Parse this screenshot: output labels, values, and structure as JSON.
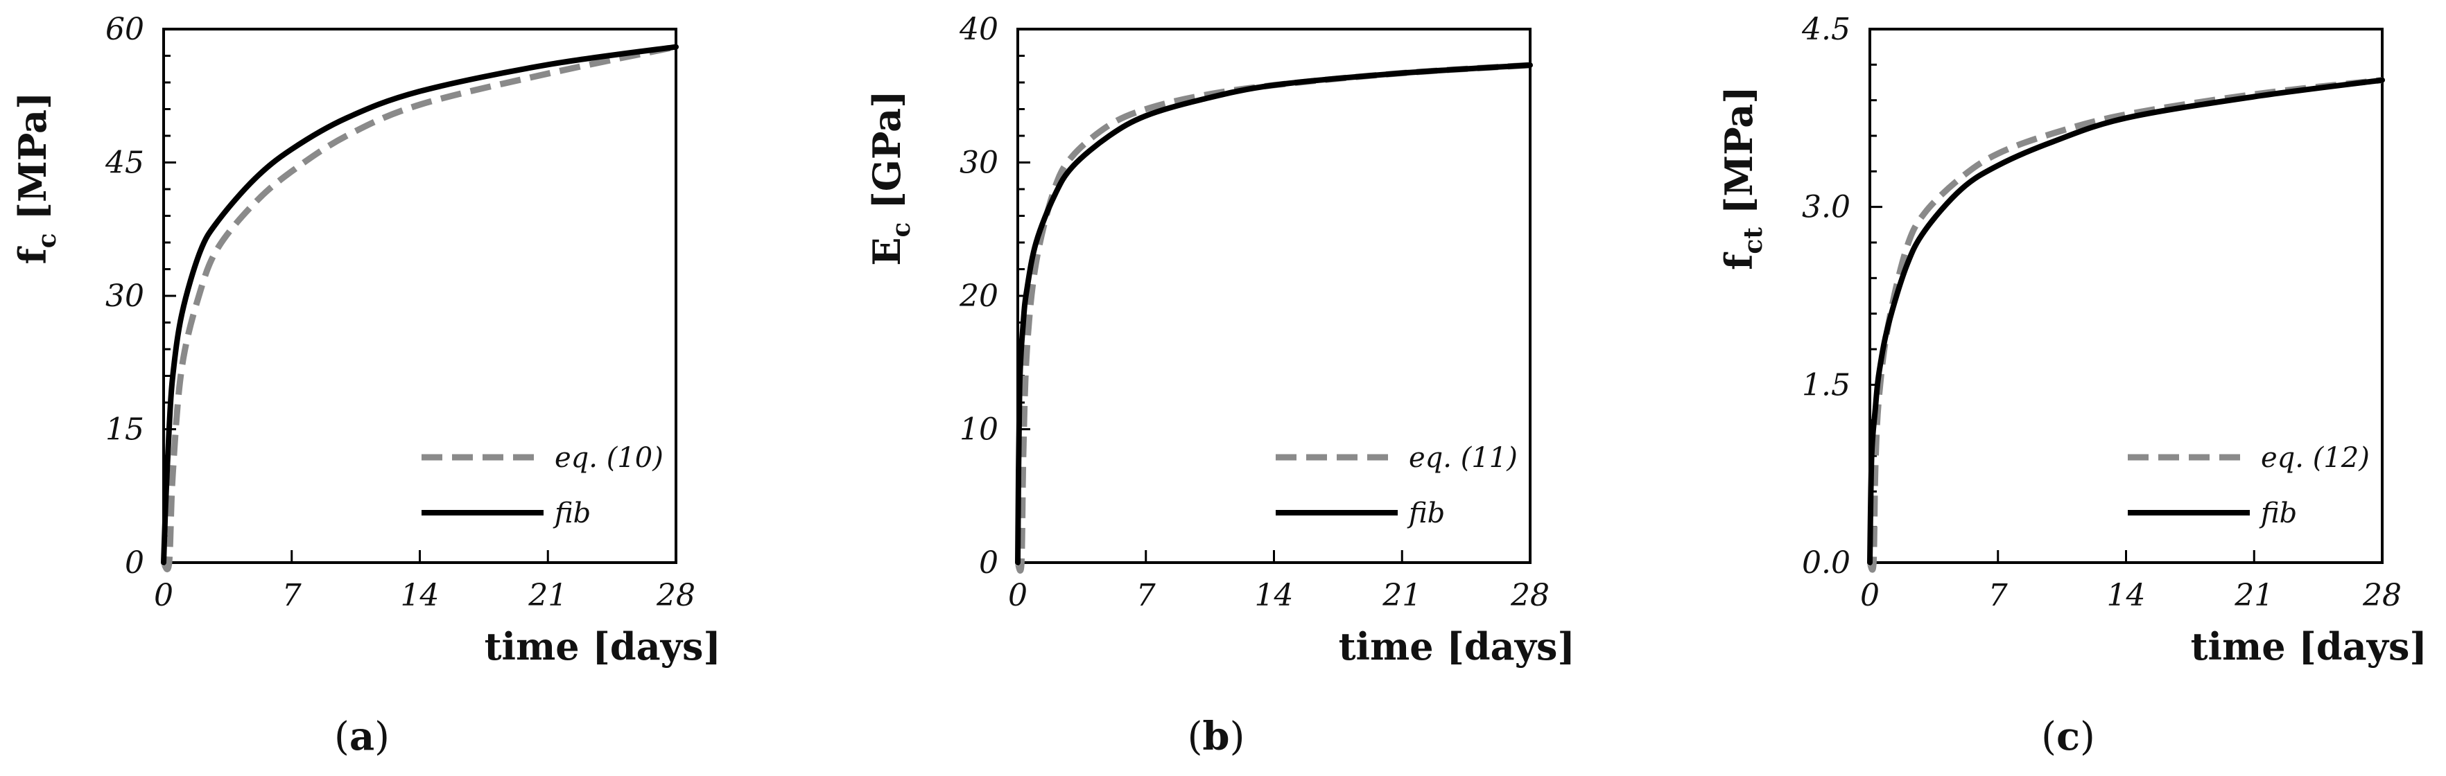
{
  "chart_data": [
    {
      "type": "line",
      "panel_label": "a",
      "xlabel": "time [days]",
      "ylabel": "f",
      "ylabel_sub": "c",
      "ylabel_unit": "[MPa]",
      "xlim": [
        0,
        28
      ],
      "ylim": [
        0,
        60
      ],
      "xticks": [
        "0",
        "7",
        "14",
        "21",
        "28"
      ],
      "xtick_values": [
        0,
        7,
        14,
        21,
        28
      ],
      "yticks": [
        "0",
        "15",
        "30",
        "45",
        "60"
      ],
      "ytick_values": [
        0,
        15,
        30,
        45,
        60
      ],
      "legend_position": "bottom-right",
      "series": [
        {
          "name": "eq. (10)",
          "style": "dashed",
          "color": "#8a8a8a",
          "x": [
            0,
            0.3,
            0.5,
            1,
            2,
            3,
            5,
            7,
            10,
            14,
            21,
            28
          ],
          "y": [
            0,
            0,
            10,
            22,
            30.5,
            35.5,
            40.5,
            44,
            48,
            51.5,
            55,
            58
          ]
        },
        {
          "name": "fib",
          "style": "solid",
          "color": "#000000",
          "x": [
            0,
            0.1,
            0.3,
            0.5,
            1,
            2,
            3,
            5,
            7,
            10,
            14,
            21,
            28
          ],
          "y": [
            0,
            6,
            15,
            21,
            28,
            35,
            38.5,
            43.2,
            46.5,
            50,
            53,
            56,
            58
          ]
        }
      ]
    },
    {
      "type": "line",
      "panel_label": "b",
      "xlabel": "time [days]",
      "ylabel": "E",
      "ylabel_sub": "c",
      "ylabel_unit": "[GPa]",
      "xlim": [
        0,
        28
      ],
      "ylim": [
        0,
        40
      ],
      "xticks": [
        "0",
        "7",
        "14",
        "21",
        "28"
      ],
      "xtick_values": [
        0,
        7,
        14,
        21,
        28
      ],
      "yticks": [
        "0",
        "10",
        "20",
        "30",
        "40"
      ],
      "ytick_values": [
        0,
        10,
        20,
        30,
        40
      ],
      "legend_position": "bottom-right",
      "series": [
        {
          "name": "eq. (11)",
          "style": "dashed",
          "color": "#8a8a8a",
          "x": [
            0,
            0.2,
            0.3,
            0.5,
            1,
            2,
            3,
            5,
            7,
            10,
            14,
            21,
            28
          ],
          "y": [
            0,
            0,
            8,
            16,
            22.5,
            28,
            30.5,
            32.8,
            34,
            35,
            35.8,
            36.7,
            37.3
          ]
        },
        {
          "name": "fib",
          "style": "solid",
          "color": "#000000",
          "x": [
            0,
            0.1,
            0.3,
            0.5,
            1,
            2,
            3,
            5,
            7,
            10,
            14,
            21,
            28
          ],
          "y": [
            0,
            13,
            18,
            20.5,
            24,
            27.5,
            29.7,
            32,
            33.5,
            34.7,
            35.8,
            36.7,
            37.3
          ]
        }
      ]
    },
    {
      "type": "line",
      "panel_label": "c",
      "xlabel": "time [days]",
      "ylabel": "f",
      "ylabel_sub": "ct",
      "ylabel_unit": "[MPa]",
      "xlim": [
        0,
        28
      ],
      "ylim": [
        0,
        4.5
      ],
      "xticks": [
        "0",
        "7",
        "14",
        "21",
        "28"
      ],
      "xtick_values": [
        0,
        7,
        14,
        21,
        28
      ],
      "yticks": [
        "0.0",
        "1.5",
        "3.0",
        "4.5"
      ],
      "ytick_values": [
        0,
        1.5,
        3.0,
        4.5
      ],
      "legend_position": "bottom-right",
      "series": [
        {
          "name": "eq. (12)",
          "style": "dashed",
          "color": "#8a8a8a",
          "x": [
            0,
            0.2,
            0.3,
            0.5,
            1,
            2,
            3,
            5,
            7,
            10,
            14,
            21,
            28
          ],
          "y": [
            0,
            0,
            0.8,
            1.4,
            2.0,
            2.65,
            2.95,
            3.25,
            3.45,
            3.62,
            3.78,
            3.95,
            4.07
          ]
        },
        {
          "name": "fib",
          "style": "solid",
          "color": "#000000",
          "x": [
            0,
            0.1,
            0.3,
            0.5,
            1,
            2,
            3,
            5,
            7,
            10,
            14,
            21,
            28
          ],
          "y": [
            0,
            0.9,
            1.3,
            1.6,
            2.0,
            2.5,
            2.8,
            3.15,
            3.35,
            3.55,
            3.75,
            3.93,
            4.07
          ]
        }
      ]
    }
  ]
}
